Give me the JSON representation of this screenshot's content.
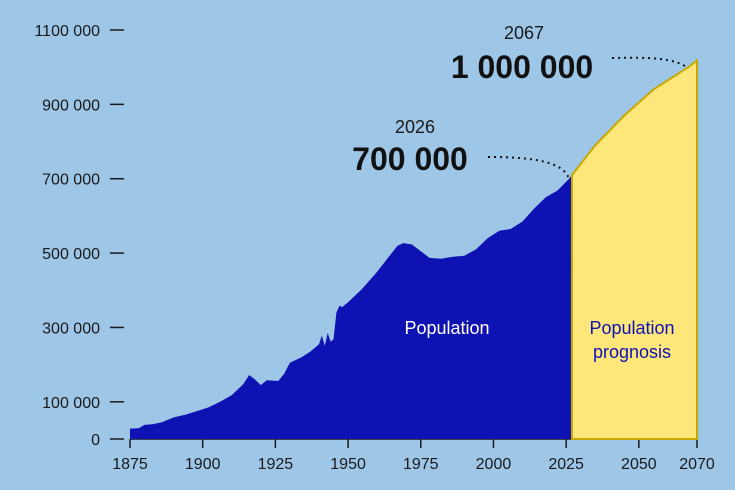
{
  "chart_data": {
    "type": "area",
    "ylim": [
      0,
      1100000
    ],
    "xlim": [
      1875,
      2070
    ],
    "y_ticks": [
      {
        "value": 0,
        "label": "0"
      },
      {
        "value": 100000,
        "label": "100 000"
      },
      {
        "value": 300000,
        "label": "300 000"
      },
      {
        "value": 500000,
        "label": "500 000"
      },
      {
        "value": 700000,
        "label": "700 000"
      },
      {
        "value": 900000,
        "label": "900 000"
      },
      {
        "value": 1100000,
        "label": "1100 000"
      }
    ],
    "x_ticks": [
      {
        "value": 1875,
        "label": "1875"
      },
      {
        "value": 1900,
        "label": "1900"
      },
      {
        "value": 1925,
        "label": "1925"
      },
      {
        "value": 1950,
        "label": "1950"
      },
      {
        "value": 1975,
        "label": "1975"
      },
      {
        "value": 2000,
        "label": "2000"
      },
      {
        "value": 2025,
        "label": "2025"
      },
      {
        "value": 2050,
        "label": "2050"
      },
      {
        "value": 2070,
        "label": "2070"
      }
    ],
    "series": [
      {
        "name": "Population",
        "color": "#0e12b3",
        "points": [
          [
            1875,
            28000
          ],
          [
            1878,
            29000
          ],
          [
            1880,
            38000
          ],
          [
            1883,
            40000
          ],
          [
            1886,
            45000
          ],
          [
            1890,
            58000
          ],
          [
            1894,
            65000
          ],
          [
            1898,
            75000
          ],
          [
            1902,
            85000
          ],
          [
            1906,
            100000
          ],
          [
            1910,
            118000
          ],
          [
            1913,
            140000
          ],
          [
            1914,
            148000
          ],
          [
            1916,
            172000
          ],
          [
            1918,
            160000
          ],
          [
            1920,
            145000
          ],
          [
            1922,
            158000
          ],
          [
            1926,
            156000
          ],
          [
            1928,
            175000
          ],
          [
            1930,
            205000
          ],
          [
            1934,
            220000
          ],
          [
            1937,
            235000
          ],
          [
            1940,
            255000
          ],
          [
            1941,
            278000
          ],
          [
            1942,
            250000
          ],
          [
            1943,
            285000
          ],
          [
            1944,
            262000
          ],
          [
            1945,
            268000
          ],
          [
            1946,
            340000
          ],
          [
            1947,
            358000
          ],
          [
            1948,
            355000
          ],
          [
            1950,
            368000
          ],
          [
            1955,
            405000
          ],
          [
            1960,
            450000
          ],
          [
            1964,
            490000
          ],
          [
            1967,
            520000
          ],
          [
            1969,
            527000
          ],
          [
            1972,
            523000
          ],
          [
            1975,
            505000
          ],
          [
            1978,
            487000
          ],
          [
            1982,
            485000
          ],
          [
            1986,
            490000
          ],
          [
            1990,
            493000
          ],
          [
            1994,
            510000
          ],
          [
            1998,
            540000
          ],
          [
            2002,
            560000
          ],
          [
            2006,
            565000
          ],
          [
            2010,
            585000
          ],
          [
            2014,
            620000
          ],
          [
            2018,
            650000
          ],
          [
            2022,
            668000
          ],
          [
            2026,
            700000
          ],
          [
            2027,
            710000
          ]
        ]
      },
      {
        "name": "Population prognosis",
        "color": "#fde67a",
        "points": [
          [
            2027,
            710000
          ],
          [
            2035,
            790000
          ],
          [
            2045,
            870000
          ],
          [
            2055,
            940000
          ],
          [
            2067,
            1000000
          ],
          [
            2070,
            1018000
          ]
        ]
      }
    ],
    "labels": {
      "historical": "Population",
      "prognosis_line1": "Population",
      "prognosis_line2": "prognosis"
    },
    "annotations": [
      {
        "year_label": "2026",
        "value_label": "700 000",
        "x": 2026,
        "y": 700000
      },
      {
        "year_label": "2067",
        "value_label": "1 000 000",
        "x": 2067,
        "y": 1000000
      }
    ],
    "colors": {
      "background": "#9dc6e7",
      "historical_fill": "#0e12b3",
      "prognosis_fill": "#fde67a",
      "prognosis_stroke": "#c9a800",
      "axis": "#1a1a1a",
      "historical_label": "#ffffff",
      "prognosis_label": "#0e12b3"
    }
  }
}
